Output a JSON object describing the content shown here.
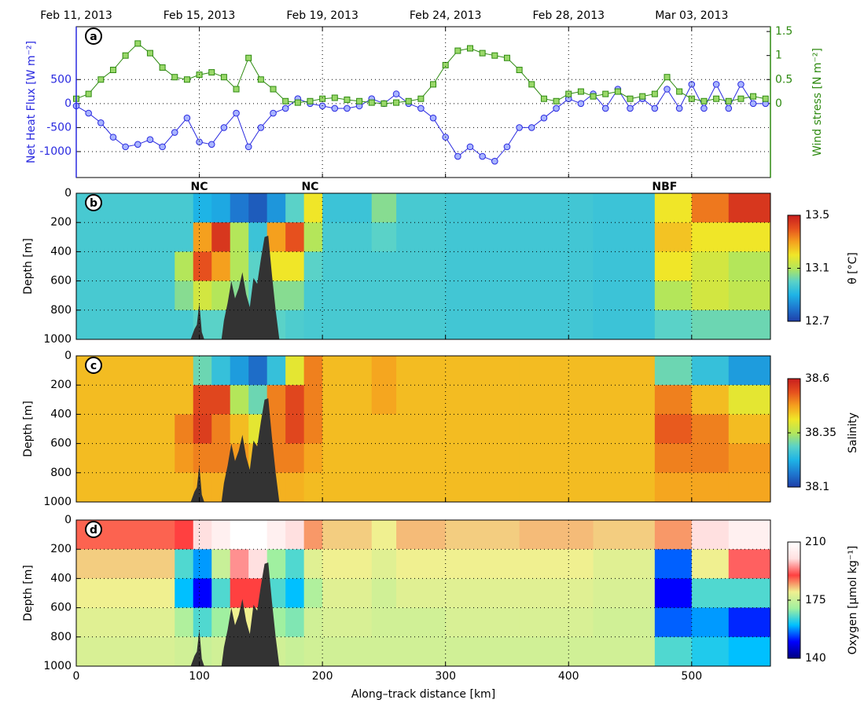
{
  "chart_data": [
    {
      "type": "line",
      "label": "a",
      "ylabel": "Net Heat Flux [W m⁻²]",
      "y2label": "Wind stress [N m⁻²]",
      "xlim": [
        0,
        564
      ],
      "xticks": [
        0,
        100,
        200,
        300,
        400,
        500
      ],
      "x2ticks": [
        {
          "value": 0,
          "label": "Feb 11, 2013"
        },
        {
          "value": 100,
          "label": "Feb 15, 2013"
        },
        {
          "value": 200,
          "label": "Feb 19, 2013"
        },
        {
          "value": 300,
          "label": "Feb 24, 2013"
        },
        {
          "value": 400,
          "label": "Feb 28, 2013"
        },
        {
          "value": 500,
          "label": "Mar 03, 2013"
        }
      ],
      "ylim": [
        -1540,
        1600
      ],
      "yticks": [
        -1000,
        -500,
        0,
        500
      ],
      "y2lim": [
        -1.54,
        1.6
      ],
      "y2ticks": [
        0,
        0.5,
        1,
        1.5
      ],
      "grid": true,
      "x": [
        0,
        10,
        20,
        30,
        40,
        50,
        60,
        70,
        80,
        90,
        100,
        110,
        120,
        130,
        140,
        150,
        160,
        170,
        180,
        190,
        200,
        210,
        220,
        230,
        240,
        250,
        260,
        270,
        280,
        290,
        300,
        310,
        320,
        330,
        340,
        350,
        360,
        370,
        380,
        390,
        400,
        410,
        420,
        430,
        440,
        450,
        460,
        470,
        480,
        490,
        500,
        510,
        520,
        530,
        540,
        550,
        560
      ],
      "series": [
        {
          "color": "#2a2ae0",
          "fill": "#a8b4ff",
          "marker": "o",
          "values": [
            -50,
            -200,
            -400,
            -700,
            -900,
            -850,
            -750,
            -900,
            -600,
            -300,
            -800,
            -850,
            -500,
            -200,
            -900,
            -500,
            -200,
            -100,
            100,
            0,
            -50,
            -100,
            -100,
            -50,
            100,
            0,
            200,
            0,
            -100,
            -300,
            -700,
            -1100,
            -900,
            -1100,
            -1200,
            -900,
            -500,
            -500,
            -300,
            -100,
            100,
            0,
            200,
            -100,
            300,
            -100,
            100,
            -100,
            300,
            -100,
            400,
            -100,
            400,
            -100,
            400,
            0,
            0
          ]
        },
        {
          "color": "#2e8a10",
          "fill": "#9ad86a",
          "marker": "s",
          "axis": "y2",
          "values": [
            0.1,
            0.2,
            0.5,
            0.7,
            1.0,
            1.25,
            1.05,
            0.75,
            0.55,
            0.5,
            0.6,
            0.65,
            0.55,
            0.3,
            0.95,
            0.5,
            0.3,
            0.05,
            0.02,
            0.05,
            0.1,
            0.12,
            0.08,
            0.05,
            0.02,
            0.0,
            0.02,
            0.05,
            0.1,
            0.4,
            0.8,
            1.1,
            1.15,
            1.05,
            1.0,
            0.95,
            0.7,
            0.4,
            0.1,
            0.05,
            0.2,
            0.25,
            0.15,
            0.2,
            0.25,
            0.1,
            0.15,
            0.2,
            0.55,
            0.25,
            0.1,
            0.05,
            0.1,
            0.05,
            0.1,
            0.15,
            0.1
          ]
        }
      ]
    },
    {
      "type": "heatmap",
      "label": "b",
      "ylabel": "Depth [m]",
      "colorbar_label": "θ [°C]",
      "xlim": [
        0,
        564
      ],
      "xticks": [
        0,
        100,
        200,
        300,
        400,
        500
      ],
      "ylim": [
        1000,
        0
      ],
      "yticks": [
        0,
        200,
        400,
        600,
        800,
        1000
      ],
      "grid": true,
      "annotations": [
        {
          "text": "NC",
          "x": 100
        },
        {
          "text": "NC",
          "x": 190
        },
        {
          "text": "NBF",
          "x": 478
        }
      ],
      "x_edges": [
        0,
        80,
        95,
        110,
        125,
        140,
        155,
        170,
        185,
        200,
        240,
        260,
        300,
        360,
        420,
        470,
        500,
        530,
        564
      ],
      "y_edges": [
        0,
        200,
        400,
        600,
        800,
        1000
      ],
      "values": [
        [
          12.97,
          12.97,
          12.9,
          12.88,
          12.8,
          12.75,
          12.85,
          13.0,
          13.2,
          12.95,
          13.05,
          12.97,
          12.96,
          12.96,
          12.95,
          13.2,
          13.35,
          13.45
        ],
        [
          12.97,
          12.97,
          13.3,
          13.45,
          13.1,
          12.95,
          13.3,
          13.4,
          13.1,
          12.97,
          13.0,
          12.97,
          12.96,
          12.96,
          12.95,
          13.25,
          13.2,
          13.2
        ],
        [
          12.97,
          13.1,
          13.4,
          13.3,
          13.1,
          13.0,
          13.2,
          13.2,
          13.0,
          12.97,
          12.97,
          12.97,
          12.96,
          12.96,
          12.95,
          13.2,
          13.15,
          13.1
        ],
        [
          12.97,
          13.05,
          13.15,
          13.1,
          13.05,
          13.0,
          13.05,
          13.05,
          12.97,
          12.97,
          12.97,
          12.97,
          12.96,
          12.96,
          12.95,
          13.1,
          13.15,
          13.12
        ],
        [
          12.97,
          12.97,
          13.0,
          13.0,
          13.0,
          13.0,
          13.0,
          12.98,
          12.97,
          12.97,
          12.97,
          12.97,
          12.96,
          12.96,
          12.95,
          13.0,
          13.02,
          13.02
        ]
      ],
      "clim": [
        12.7,
        13.5
      ],
      "cticks": [
        12.7,
        13.1,
        13.5
      ],
      "colormap": [
        "#1f3fa8",
        "#1e78d0",
        "#1eb4e6",
        "#5ad2c8",
        "#b4e65a",
        "#f0e628",
        "#f5a01e",
        "#e6501e",
        "#c81e1e"
      ],
      "mask": {
        "x": [
          93,
          96,
          98,
          100,
          102,
          104,
          106,
          118,
          120,
          123,
          126,
          129,
          132,
          135,
          138,
          141,
          144,
          147,
          150,
          153,
          156,
          159,
          162,
          165
        ],
        "depth": [
          1000,
          930,
          900,
          750,
          950,
          1000,
          1000,
          1000,
          870,
          750,
          600,
          720,
          650,
          540,
          690,
          780,
          580,
          620,
          450,
          300,
          290,
          560,
          800,
          1000
        ]
      }
    },
    {
      "type": "heatmap",
      "label": "c",
      "ylabel": "Depth [m]",
      "colorbar_label": "Salinity",
      "xlim": [
        0,
        564
      ],
      "xticks": [
        0,
        100,
        200,
        300,
        400,
        500
      ],
      "ylim": [
        1000,
        0
      ],
      "yticks": [
        0,
        200,
        400,
        600,
        800,
        1000
      ],
      "grid": true,
      "x_edges": [
        0,
        80,
        95,
        110,
        125,
        140,
        155,
        170,
        185,
        200,
        240,
        260,
        300,
        360,
        420,
        470,
        500,
        530,
        564
      ],
      "y_edges": [
        0,
        200,
        400,
        600,
        800,
        1000
      ],
      "values": [
        [
          38.45,
          38.45,
          38.3,
          38.25,
          38.2,
          38.15,
          38.25,
          38.4,
          38.5,
          38.45,
          38.47,
          38.45,
          38.45,
          38.45,
          38.45,
          38.3,
          38.25,
          38.2
        ],
        [
          38.45,
          38.45,
          38.55,
          38.55,
          38.35,
          38.3,
          38.5,
          38.55,
          38.5,
          38.45,
          38.47,
          38.45,
          38.45,
          38.45,
          38.45,
          38.5,
          38.45,
          38.4
        ],
        [
          38.45,
          38.5,
          38.56,
          38.5,
          38.45,
          38.4,
          38.5,
          38.55,
          38.5,
          38.45,
          38.45,
          38.45,
          38.45,
          38.45,
          38.45,
          38.53,
          38.5,
          38.45
        ],
        [
          38.45,
          38.48,
          38.5,
          38.5,
          38.48,
          38.45,
          38.5,
          38.5,
          38.47,
          38.45,
          38.45,
          38.45,
          38.45,
          38.45,
          38.45,
          38.5,
          38.5,
          38.48
        ],
        [
          38.45,
          38.45,
          38.46,
          38.46,
          38.46,
          38.46,
          38.46,
          38.46,
          38.45,
          38.45,
          38.45,
          38.45,
          38.45,
          38.45,
          38.45,
          38.47,
          38.47,
          38.47
        ]
      ],
      "clim": [
        38.1,
        38.6
      ],
      "cticks": [
        38.1,
        38.35,
        38.6
      ],
      "colormap": [
        "#1f3fa8",
        "#1e78d0",
        "#1eb4e6",
        "#5ad2c8",
        "#b4e65a",
        "#f0e628",
        "#f5a01e",
        "#e6501e",
        "#c81e1e"
      ],
      "mask": {
        "x": [
          93,
          96,
          98,
          100,
          102,
          104,
          106,
          118,
          120,
          123,
          126,
          129,
          132,
          135,
          138,
          141,
          144,
          147,
          150,
          153,
          156,
          159,
          162,
          165
        ],
        "depth": [
          1000,
          930,
          900,
          750,
          950,
          1000,
          1000,
          1000,
          870,
          750,
          600,
          720,
          650,
          540,
          690,
          780,
          580,
          620,
          450,
          300,
          290,
          560,
          800,
          1000
        ]
      }
    },
    {
      "type": "heatmap",
      "label": "d",
      "ylabel": "Depth [m]",
      "colorbar_label": "Oxygen [μmol kg⁻¹]",
      "xlabel": "Along–track distance [km]",
      "xtick_labels": true,
      "xlim": [
        0,
        564
      ],
      "xticks": [
        0,
        100,
        200,
        300,
        400,
        500
      ],
      "ylim": [
        1000,
        0
      ],
      "yticks": [
        0,
        200,
        400,
        600,
        800,
        1000
      ],
      "grid": true,
      "x_edges": [
        0,
        80,
        95,
        110,
        125,
        140,
        155,
        170,
        185,
        200,
        240,
        260,
        300,
        360,
        420,
        470,
        500,
        530,
        564
      ],
      "y_edges": [
        0,
        200,
        400,
        600,
        800,
        1000
      ],
      "values": [
        [
          188,
          190,
          200,
          205,
          210,
          210,
          205,
          200,
          185,
          182,
          180,
          183,
          182,
          183,
          182,
          185,
          200,
          205
        ],
        [
          182,
          165,
          158,
          175,
          195,
          200,
          170,
          165,
          178,
          180,
          178,
          180,
          180,
          180,
          178,
          155,
          180,
          192
        ],
        [
          180,
          160,
          150,
          165,
          190,
          190,
          165,
          160,
          172,
          178,
          176,
          178,
          178,
          178,
          177,
          150,
          165,
          165
        ],
        [
          178,
          172,
          165,
          170,
          180,
          180,
          170,
          168,
          176,
          177,
          176,
          176,
          177,
          177,
          176,
          155,
          158,
          152
        ],
        [
          177,
          176,
          175,
          176,
          178,
          178,
          176,
          175,
          176,
          176,
          176,
          176,
          176,
          176,
          176,
          165,
          162,
          160
        ]
      ],
      "clim": [
        140,
        210
      ],
      "cticks": [
        140,
        175,
        210
      ],
      "colormap": [
        "#000080",
        "#0000ff",
        "#00c0ff",
        "#a0f0a0",
        "#f0f090",
        "#ff4040",
        "#ffe0e0",
        "#ffffff"
      ],
      "mask": {
        "x": [
          93,
          96,
          98,
          100,
          102,
          104,
          106,
          118,
          120,
          123,
          126,
          129,
          132,
          135,
          138,
          141,
          144,
          147,
          150,
          153,
          156,
          159,
          162,
          165
        ],
        "depth": [
          1000,
          930,
          900,
          750,
          950,
          1000,
          1000,
          1000,
          870,
          750,
          600,
          720,
          650,
          540,
          690,
          780,
          580,
          620,
          450,
          300,
          290,
          560,
          800,
          1000
        ]
      }
    }
  ]
}
